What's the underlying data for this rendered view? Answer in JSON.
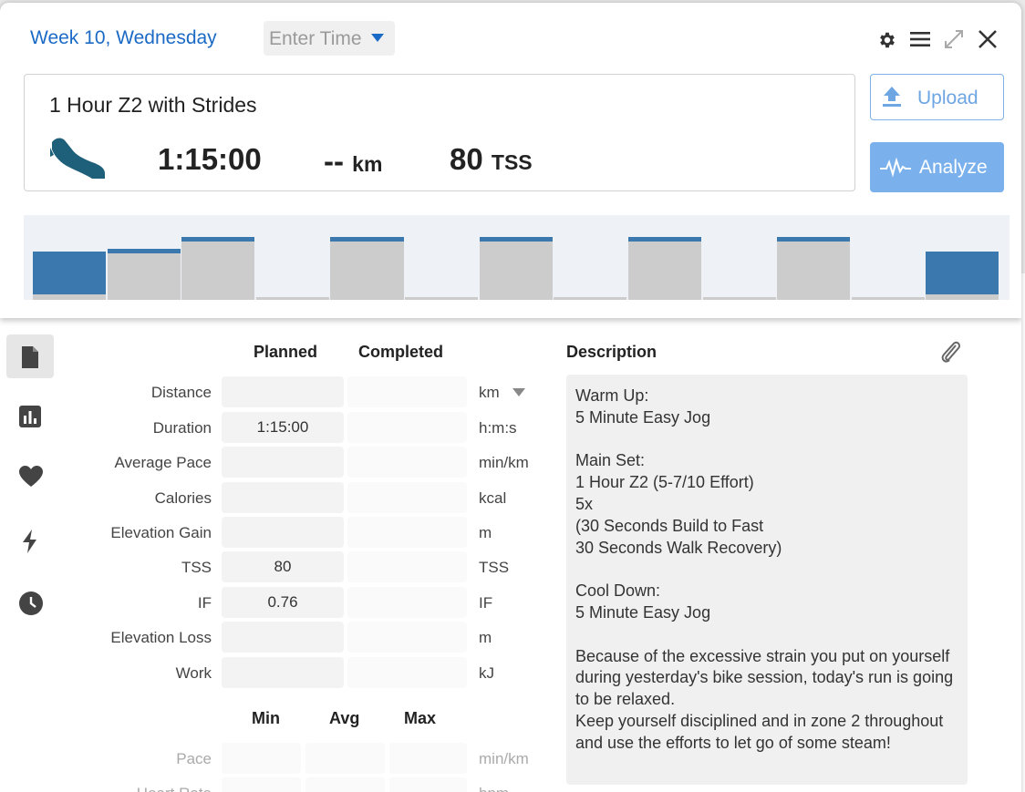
{
  "header": {
    "week_day": "Week 10, Wednesday",
    "time_placeholder": "Enter Time"
  },
  "workout": {
    "title": "1 Hour Z2 with Strides",
    "sport_icon": "running-shoe-icon",
    "duration": "1:15:00",
    "distance": "--",
    "distance_unit": "km",
    "tss": "80",
    "tss_unit": "TSS"
  },
  "buttons": {
    "upload": "Upload",
    "analyze": "Analyze"
  },
  "chart_data": {
    "type": "bar",
    "title": "",
    "xlabel": "",
    "ylabel": "",
    "ylim": [
      0,
      100
    ],
    "segments": [
      {
        "planned": 7,
        "actual": 55
      },
      {
        "planned": 60,
        "actual": 0
      },
      {
        "planned": 75,
        "actual": 0
      },
      {
        "planned": 3,
        "actual": 0
      },
      {
        "planned": 75,
        "actual": 0
      },
      {
        "planned": 3,
        "actual": 0
      },
      {
        "planned": 75,
        "actual": 0
      },
      {
        "planned": 3,
        "actual": 0
      },
      {
        "planned": 75,
        "actual": 0
      },
      {
        "planned": 3,
        "actual": 0
      },
      {
        "planned": 75,
        "actual": 0
      },
      {
        "planned": 3,
        "actual": 0
      },
      {
        "planned": 7,
        "actual": 55
      }
    ],
    "colors": {
      "planned": "#cccccc",
      "actual": "#3a78ad",
      "cap": "#3a78ad"
    }
  },
  "side_nav": [
    "document-icon",
    "bar-chart-icon",
    "heart-icon",
    "lightning-icon",
    "clock-icon"
  ],
  "table": {
    "col_planned": "Planned",
    "col_completed": "Completed",
    "rows": [
      {
        "label": "Distance",
        "planned": "",
        "completed": "",
        "unit": "km"
      },
      {
        "label": "Duration",
        "planned": "1:15:00",
        "completed": "",
        "unit": "h:m:s"
      },
      {
        "label": "Average Pace",
        "planned": "",
        "completed": "",
        "unit": "min/km"
      },
      {
        "label": "Calories",
        "planned": "",
        "completed": "",
        "unit": "kcal"
      },
      {
        "label": "Elevation Gain",
        "planned": "",
        "completed": "",
        "unit": "m"
      },
      {
        "label": "TSS",
        "planned": "80",
        "completed": "",
        "unit": "TSS"
      },
      {
        "label": "IF",
        "planned": "0.76",
        "completed": "",
        "unit": "IF"
      },
      {
        "label": "Elevation Loss",
        "planned": "",
        "completed": "",
        "unit": "m"
      },
      {
        "label": "Work",
        "planned": "",
        "completed": "",
        "unit": "kJ"
      }
    ]
  },
  "stats": {
    "col_min": "Min",
    "col_avg": "Avg",
    "col_max": "Max",
    "rows": [
      {
        "label": "Pace",
        "unit": "min/km"
      },
      {
        "label": "Heart Rate",
        "unit": "bpm"
      }
    ]
  },
  "description": {
    "title": "Description",
    "text": "Warm Up:\n5 Minute Easy Jog\n\nMain Set:\n1 Hour Z2 (5-7/10 Effort)\n5x\n(30 Seconds Build to Fast\n30 Seconds Walk Recovery)\n\nCool Down:\n5 Minute Easy Jog\n\nBecause of the excessive strain you put on yourself during yesterday's bike session, today's run is going to be relaxed.\nKeep yourself disciplined and in zone 2 throughout and use the efforts to let go of some steam!"
  }
}
